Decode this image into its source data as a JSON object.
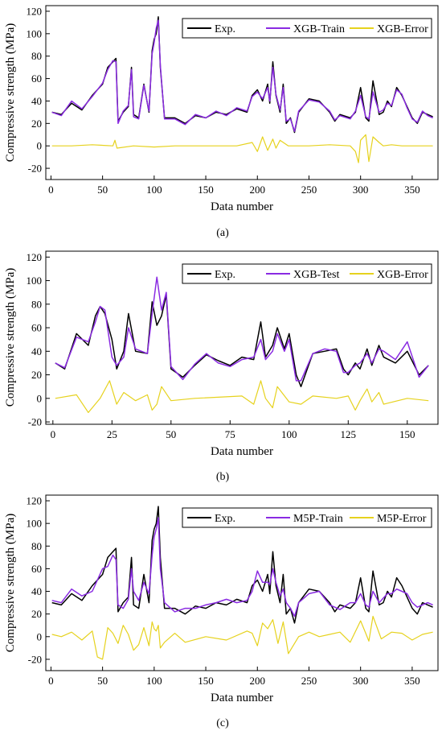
{
  "figure": {
    "panels": [
      {
        "label": "(a)"
      },
      {
        "label": "(b)"
      },
      {
        "label": "(c)"
      }
    ]
  },
  "colors": {
    "exp": "#000000",
    "model": "#8a2be2",
    "error": "#e6d21e"
  },
  "chart_data": [
    {
      "type": "line",
      "xlabel": "Data number",
      "ylabel": "Compressive strength (MPa)",
      "xlim": [
        -5,
        375
      ],
      "ylim": [
        -30,
        125
      ],
      "xticks": [
        0,
        50,
        100,
        150,
        200,
        250,
        300,
        350
      ],
      "yticks": [
        -20,
        0,
        20,
        40,
        60,
        80,
        100,
        120
      ],
      "legend_position": "top-right",
      "series": [
        {
          "name": "Exp.",
          "role": "exp",
          "x": [
            1,
            10,
            20,
            30,
            40,
            50,
            55,
            60,
            63,
            65,
            70,
            75,
            78,
            80,
            85,
            90,
            95,
            98,
            100,
            102,
            104,
            106,
            110,
            120,
            130,
            140,
            150,
            160,
            170,
            180,
            190,
            195,
            200,
            205,
            210,
            212,
            215,
            218,
            222,
            225,
            228,
            232,
            236,
            240,
            250,
            260,
            270,
            275,
            280,
            290,
            295,
            300,
            305,
            308,
            312,
            318,
            322,
            326,
            330,
            335,
            340,
            345,
            350,
            355,
            360,
            365,
            370
          ],
          "values": [
            30,
            28,
            38,
            32,
            45,
            55,
            70,
            75,
            78,
            22,
            30,
            35,
            70,
            28,
            25,
            55,
            30,
            85,
            95,
            100,
            115,
            70,
            25,
            25,
            20,
            27,
            25,
            30,
            28,
            33,
            30,
            45,
            50,
            40,
            55,
            38,
            75,
            45,
            30,
            55,
            20,
            25,
            12,
            30,
            42,
            40,
            30,
            22,
            28,
            25,
            30,
            52,
            25,
            22,
            58,
            28,
            30,
            40,
            35,
            52,
            45,
            35,
            25,
            20,
            30,
            28,
            26
          ]
        },
        {
          "name": "XGB-Train",
          "role": "model",
          "x": [
            1,
            10,
            20,
            30,
            40,
            50,
            55,
            60,
            63,
            65,
            70,
            75,
            78,
            80,
            85,
            90,
            95,
            98,
            100,
            102,
            104,
            106,
            110,
            120,
            130,
            140,
            150,
            160,
            170,
            180,
            190,
            195,
            200,
            205,
            210,
            212,
            215,
            218,
            222,
            225,
            228,
            232,
            236,
            240,
            250,
            260,
            270,
            275,
            280,
            290,
            295,
            300,
            305,
            308,
            312,
            318,
            322,
            326,
            330,
            335,
            340,
            345,
            350,
            355,
            360,
            365,
            370
          ],
          "values": [
            30,
            27,
            40,
            33,
            44,
            56,
            68,
            76,
            75,
            20,
            31,
            36,
            68,
            26,
            24,
            54,
            31,
            82,
            92,
            105,
            112,
            72,
            24,
            24,
            19,
            28,
            25,
            31,
            27,
            34,
            31,
            44,
            48,
            42,
            52,
            40,
            70,
            46,
            32,
            52,
            22,
            24,
            13,
            31,
            41,
            39,
            31,
            23,
            27,
            24,
            31,
            45,
            26,
            24,
            48,
            30,
            32,
            38,
            36,
            50,
            46,
            34,
            24,
            21,
            31,
            27,
            25
          ]
        },
        {
          "name": "XGB-Error",
          "role": "error",
          "x": [
            1,
            20,
            40,
            60,
            62,
            64,
            80,
            100,
            120,
            150,
            180,
            195,
            200,
            205,
            210,
            215,
            218,
            222,
            230,
            250,
            270,
            290,
            295,
            298,
            300,
            305,
            308,
            312,
            318,
            322,
            330,
            340,
            360,
            370
          ],
          "values": [
            0,
            0,
            1,
            0,
            5,
            -2,
            0,
            -1,
            0,
            0,
            0,
            3,
            -5,
            8,
            -4,
            6,
            -2,
            5,
            0,
            0,
            1,
            0,
            -5,
            -15,
            5,
            10,
            -14,
            8,
            3,
            0,
            1,
            0,
            0,
            0
          ]
        }
      ]
    },
    {
      "type": "line",
      "xlabel": "Data number",
      "ylabel": "Compressive strength (MPa)",
      "xlim": [
        -3,
        163
      ],
      "ylim": [
        -22,
        125
      ],
      "xticks": [
        0,
        25,
        50,
        75,
        100,
        125,
        150
      ],
      "yticks": [
        -20,
        0,
        20,
        40,
        60,
        80,
        100,
        120
      ],
      "legend_position": "top-right",
      "series": [
        {
          "name": "Exp.",
          "role": "exp",
          "x": [
            1,
            5,
            10,
            15,
            18,
            20,
            22,
            25,
            27,
            30,
            32,
            35,
            40,
            42,
            44,
            46,
            48,
            50,
            55,
            60,
            65,
            70,
            75,
            80,
            85,
            88,
            90,
            93,
            95,
            98,
            100,
            103,
            105,
            110,
            115,
            120,
            123,
            125,
            128,
            130,
            133,
            135,
            138,
            140,
            145,
            150,
            155,
            159
          ],
          "values": [
            30,
            25,
            55,
            45,
            70,
            78,
            72,
            50,
            25,
            40,
            72,
            40,
            38,
            82,
            62,
            70,
            88,
            25,
            18,
            28,
            37,
            32,
            28,
            35,
            33,
            65,
            35,
            45,
            60,
            42,
            55,
            20,
            10,
            38,
            40,
            42,
            25,
            20,
            30,
            25,
            42,
            28,
            45,
            35,
            30,
            40,
            20,
            28
          ]
        },
        {
          "name": "XGB-Test",
          "role": "model",
          "x": [
            1,
            5,
            10,
            15,
            18,
            20,
            22,
            25,
            27,
            30,
            32,
            35,
            40,
            42,
            44,
            46,
            48,
            50,
            55,
            60,
            65,
            70,
            75,
            80,
            85,
            88,
            90,
            93,
            95,
            98,
            100,
            103,
            105,
            110,
            115,
            120,
            123,
            125,
            128,
            130,
            133,
            135,
            138,
            140,
            145,
            150,
            155,
            159
          ],
          "values": [
            30,
            26,
            52,
            48,
            65,
            78,
            75,
            35,
            28,
            35,
            60,
            42,
            38,
            72,
            103,
            75,
            90,
            27,
            16,
            29,
            38,
            30,
            27,
            33,
            35,
            50,
            33,
            40,
            55,
            40,
            50,
            15,
            15,
            38,
            42,
            40,
            22,
            22,
            28,
            30,
            38,
            30,
            42,
            40,
            33,
            48,
            18,
            28
          ]
        },
        {
          "name": "XGB-Error",
          "role": "error",
          "x": [
            1,
            10,
            15,
            20,
            24,
            27,
            30,
            35,
            40,
            42,
            44,
            46,
            50,
            60,
            80,
            85,
            88,
            90,
            93,
            95,
            100,
            105,
            110,
            120,
            125,
            128,
            130,
            133,
            135,
            138,
            140,
            150,
            159
          ],
          "values": [
            0,
            3,
            -12,
            0,
            15,
            -5,
            5,
            -2,
            3,
            -10,
            -5,
            10,
            -2,
            0,
            2,
            -5,
            15,
            0,
            -8,
            10,
            -3,
            -5,
            2,
            0,
            2,
            -10,
            -2,
            8,
            -3,
            5,
            -5,
            0,
            -2
          ]
        }
      ]
    },
    {
      "type": "line",
      "xlabel": "Data number",
      "ylabel": "Compressive strength (MPa)",
      "xlim": [
        -5,
        375
      ],
      "ylim": [
        -30,
        125
      ],
      "xticks": [
        0,
        50,
        100,
        150,
        200,
        250,
        300,
        350
      ],
      "yticks": [
        -20,
        0,
        20,
        40,
        60,
        80,
        100,
        120
      ],
      "legend_position": "top-right",
      "series": [
        {
          "name": "Exp.",
          "role": "exp",
          "x": [
            1,
            10,
            20,
            30,
            40,
            50,
            55,
            60,
            63,
            65,
            70,
            75,
            78,
            80,
            85,
            90,
            95,
            98,
            100,
            102,
            104,
            106,
            110,
            120,
            130,
            140,
            150,
            160,
            170,
            180,
            190,
            195,
            200,
            205,
            210,
            212,
            215,
            218,
            222,
            225,
            228,
            232,
            236,
            240,
            250,
            260,
            270,
            275,
            280,
            290,
            295,
            300,
            305,
            308,
            312,
            318,
            322,
            326,
            330,
            335,
            340,
            345,
            350,
            355,
            360,
            365,
            370
          ],
          "values": [
            30,
            28,
            38,
            32,
            45,
            55,
            70,
            75,
            78,
            22,
            30,
            35,
            70,
            28,
            25,
            55,
            30,
            85,
            95,
            100,
            115,
            70,
            25,
            25,
            20,
            27,
            25,
            30,
            28,
            33,
            30,
            45,
            50,
            40,
            55,
            38,
            75,
            45,
            30,
            55,
            20,
            25,
            12,
            30,
            42,
            40,
            30,
            22,
            28,
            25,
            30,
            52,
            25,
            22,
            58,
            28,
            30,
            40,
            35,
            52,
            45,
            35,
            25,
            20,
            30,
            28,
            26
          ]
        },
        {
          "name": "M5P-Train",
          "role": "model",
          "x": [
            1,
            10,
            20,
            30,
            40,
            50,
            55,
            60,
            63,
            65,
            70,
            75,
            78,
            80,
            85,
            90,
            95,
            98,
            100,
            102,
            104,
            106,
            110,
            120,
            130,
            140,
            150,
            160,
            170,
            180,
            190,
            195,
            200,
            205,
            210,
            212,
            215,
            218,
            222,
            225,
            228,
            232,
            236,
            240,
            250,
            260,
            270,
            275,
            280,
            290,
            295,
            300,
            305,
            308,
            312,
            318,
            322,
            326,
            330,
            335,
            340,
            345,
            350,
            355,
            360,
            365,
            370
          ],
          "values": [
            32,
            30,
            42,
            36,
            40,
            60,
            62,
            72,
            68,
            28,
            25,
            33,
            60,
            40,
            32,
            48,
            38,
            72,
            88,
            95,
            105,
            60,
            30,
            22,
            25,
            25,
            28,
            30,
            33,
            30,
            32,
            40,
            58,
            48,
            48,
            46,
            60,
            48,
            36,
            42,
            30,
            25,
            18,
            30,
            38,
            40,
            28,
            26,
            24,
            30,
            30,
            38,
            28,
            26,
            40,
            30,
            34,
            38,
            38,
            42,
            40,
            38,
            30,
            26,
            28,
            30,
            28
          ]
        },
        {
          "name": "M5P-Error",
          "role": "error",
          "x": [
            1,
            10,
            20,
            30,
            40,
            45,
            50,
            55,
            60,
            65,
            70,
            75,
            80,
            85,
            90,
            95,
            98,
            100,
            102,
            104,
            106,
            110,
            120,
            130,
            150,
            170,
            190,
            195,
            200,
            205,
            210,
            215,
            220,
            225,
            230,
            240,
            250,
            260,
            270,
            280,
            290,
            300,
            305,
            308,
            312,
            320,
            330,
            340,
            350,
            360,
            370
          ],
          "values": [
            2,
            0,
            4,
            -3,
            5,
            -18,
            -20,
            8,
            3,
            -6,
            10,
            2,
            -12,
            -7,
            8,
            -8,
            13,
            7,
            5,
            10,
            -10,
            -5,
            3,
            -5,
            0,
            -3,
            5,
            3,
            -8,
            12,
            7,
            15,
            -6,
            13,
            -15,
            0,
            4,
            0,
            2,
            4,
            -5,
            14,
            3,
            -4,
            18,
            -2,
            4,
            3,
            -3,
            2,
            4
          ]
        }
      ]
    }
  ]
}
